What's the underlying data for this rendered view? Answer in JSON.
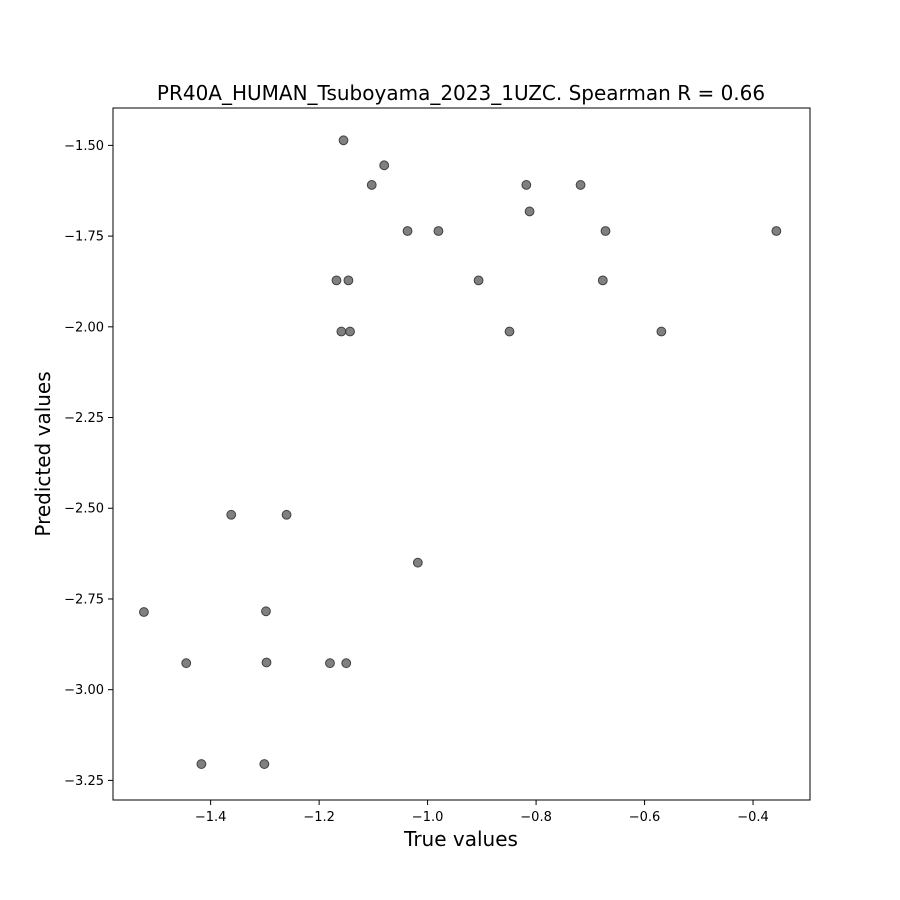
{
  "chart_data": {
    "type": "scatter",
    "title": "PR40A_HUMAN_Tsuboyama_2023_1UZC. Spearman R = 0.66",
    "xlabel": "True values",
    "ylabel": "Predicted values",
    "xlim": [
      -1.58,
      -0.295
    ],
    "ylim": [
      -3.304,
      -1.397
    ],
    "xticks": [
      -1.4,
      -1.2,
      -1.0,
      -0.8,
      -0.6,
      -0.4
    ],
    "xtick_labels": [
      "−1.4",
      "−1.2",
      "−1.0",
      "−0.8",
      "−0.6",
      "−0.4"
    ],
    "yticks": [
      -1.5,
      -1.75,
      -2.0,
      -2.25,
      -2.5,
      -2.75,
      -3.0,
      -3.25
    ],
    "ytick_labels": [
      "−1.50",
      "−1.75",
      "−2.00",
      "−2.25",
      "−2.50",
      "−2.75",
      "−3.00",
      "−3.25"
    ],
    "grid": false,
    "marker_color": "#555555",
    "marker_edge_color": "#333333",
    "marker_alpha": 0.75,
    "points": [
      {
        "x": -1.155,
        "y": -1.486
      },
      {
        "x": -1.08,
        "y": -1.555
      },
      {
        "x": -1.103,
        "y": -1.609
      },
      {
        "x": -0.818,
        "y": -1.609
      },
      {
        "x": -0.718,
        "y": -1.609
      },
      {
        "x": -0.812,
        "y": -1.682
      },
      {
        "x": -1.037,
        "y": -1.736
      },
      {
        "x": -0.98,
        "y": -1.736
      },
      {
        "x": -0.672,
        "y": -1.736
      },
      {
        "x": -0.357,
        "y": -1.736
      },
      {
        "x": -1.168,
        "y": -1.872
      },
      {
        "x": -1.146,
        "y": -1.872
      },
      {
        "x": -0.906,
        "y": -1.872
      },
      {
        "x": -0.677,
        "y": -1.872
      },
      {
        "x": -1.159,
        "y": -2.013
      },
      {
        "x": -1.143,
        "y": -2.013
      },
      {
        "x": -0.849,
        "y": -2.013
      },
      {
        "x": -0.569,
        "y": -2.013
      },
      {
        "x": -1.362,
        "y": -2.518
      },
      {
        "x": -1.26,
        "y": -2.518
      },
      {
        "x": -1.018,
        "y": -2.65
      },
      {
        "x": -1.523,
        "y": -2.786
      },
      {
        "x": -1.298,
        "y": -2.784
      },
      {
        "x": -1.445,
        "y": -2.927
      },
      {
        "x": -1.297,
        "y": -2.925
      },
      {
        "x": -1.18,
        "y": -2.927
      },
      {
        "x": -1.15,
        "y": -2.927
      },
      {
        "x": -1.417,
        "y": -3.205
      },
      {
        "x": -1.301,
        "y": -3.205
      }
    ]
  }
}
